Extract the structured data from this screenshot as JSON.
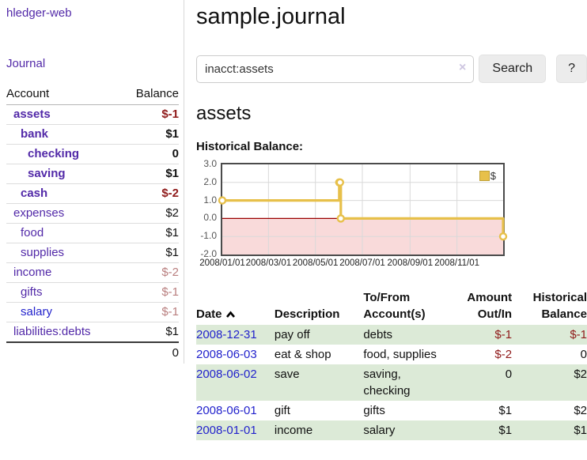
{
  "app": {
    "title": "hledger-web",
    "nav_journal": "Journal"
  },
  "colors": {
    "accent_purple": "#5229a8",
    "link_blue": "#2222cc",
    "negative_red": "#8f1a1a",
    "muted_negative_red": "#b97f7f",
    "row_shade_green": "#dcead7",
    "chart_line_gold": "#e7c04a",
    "chart_negative_fill": "#f9dada",
    "chart_zero_line": "#990000"
  },
  "sidebar": {
    "table": {
      "col_account": "Account",
      "col_balance": "Balance"
    },
    "accounts": [
      {
        "name": "assets",
        "balance": "$-1",
        "indent": 0,
        "bold": true,
        "name_color": "purple",
        "balance_color": "red"
      },
      {
        "name": "bank",
        "balance": "$1",
        "indent": 1,
        "bold": true,
        "name_color": "purple",
        "balance_color": "black"
      },
      {
        "name": "checking",
        "balance": "0",
        "indent": 2,
        "bold": true,
        "name_color": "purple",
        "balance_color": "black"
      },
      {
        "name": "saving",
        "balance": "$1",
        "indent": 2,
        "bold": true,
        "name_color": "purple",
        "balance_color": "black"
      },
      {
        "name": "cash",
        "balance": "$-2",
        "indent": 1,
        "bold": true,
        "name_color": "purple",
        "balance_color": "red"
      },
      {
        "name": "expenses",
        "balance": "$2",
        "indent": 0,
        "bold": false,
        "name_color": "purple",
        "balance_color": "black"
      },
      {
        "name": "food",
        "balance": "$1",
        "indent": 1,
        "bold": false,
        "name_color": "purple",
        "balance_color": "black"
      },
      {
        "name": "supplies",
        "balance": "$1",
        "indent": 1,
        "bold": false,
        "name_color": "purple",
        "balance_color": "black"
      },
      {
        "name": "income",
        "balance": "$-2",
        "indent": 0,
        "bold": false,
        "name_color": "purple",
        "balance_color": "faded"
      },
      {
        "name": "gifts",
        "balance": "$-1",
        "indent": 1,
        "bold": false,
        "name_color": "purple",
        "balance_color": "faded"
      },
      {
        "name": "salary",
        "balance": "$-1",
        "indent": 1,
        "bold": false,
        "name_color": "blue",
        "balance_color": "faded"
      },
      {
        "name": "liabilities:debts",
        "balance": "$1",
        "indent": 0,
        "bold": false,
        "name_color": "purple",
        "balance_color": "black"
      }
    ],
    "total": "0"
  },
  "header": {
    "title": "sample.journal"
  },
  "search": {
    "query": "inacct:assets",
    "clear_label": "×",
    "button": "Search",
    "help": "?"
  },
  "account_page": {
    "heading": "assets",
    "chart_title": "Historical Balance:"
  },
  "chart_data": {
    "type": "line",
    "step": true,
    "title": "Historical Balance:",
    "legend_label": "$",
    "legend_position": "top-right",
    "grid": true,
    "x_start": "2008-01-01",
    "x_end": "2008-12-31",
    "ylim": [
      -2,
      3
    ],
    "yticks": [
      {
        "label": "3.0",
        "value": 3
      },
      {
        "label": "2.0",
        "value": 2
      },
      {
        "label": "1.0",
        "value": 1
      },
      {
        "label": "0.0",
        "value": 0
      },
      {
        "label": "-1.0",
        "value": -1
      },
      {
        "label": "-2.0",
        "value": -2
      }
    ],
    "xticks": [
      {
        "label": "2008/01/01",
        "date": "2008-01-01"
      },
      {
        "label": "2008/03/01",
        "date": "2008-03-01"
      },
      {
        "label": "2008/05/01",
        "date": "2008-05-01"
      },
      {
        "label": "2008/07/01",
        "date": "2008-07-01"
      },
      {
        "label": "2008/09/01",
        "date": "2008-09-01"
      },
      {
        "label": "2008/11/01",
        "date": "2008-11-01"
      }
    ],
    "series": [
      {
        "name": "$",
        "points": [
          [
            "2008-01-01",
            1
          ],
          [
            "2008-06-01",
            2
          ],
          [
            "2008-06-02",
            2
          ],
          [
            "2008-06-03",
            0
          ],
          [
            "2008-12-31",
            -1
          ]
        ]
      }
    ],
    "line_color": "#e7c04a",
    "negative_region_fill": "#f9dada",
    "zero_line_color": "#990000"
  },
  "register": {
    "columns": [
      {
        "label": "Date"
      },
      {
        "label": "Description"
      },
      {
        "label": "To/From Account(s)"
      },
      {
        "label": "Amount Out/In"
      },
      {
        "label": "Historical Balance"
      }
    ],
    "rows": [
      {
        "date": "2008-12-31",
        "description": "pay off",
        "accounts": "debts",
        "amount": "$-1",
        "amount_negative": true,
        "balance": "$-1",
        "balance_negative": true,
        "shaded": true
      },
      {
        "date": "2008-06-03",
        "description": "eat & shop",
        "accounts": "food, supplies",
        "amount": "$-2",
        "amount_negative": true,
        "balance": "0",
        "balance_negative": false,
        "shaded": false
      },
      {
        "date": "2008-06-02",
        "description": "save",
        "accounts": "saving, checking",
        "amount": "0",
        "amount_negative": false,
        "balance": "$2",
        "balance_negative": false,
        "shaded": true
      },
      {
        "date": "2008-06-01",
        "description": "gift",
        "accounts": "gifts",
        "amount": "$1",
        "amount_negative": false,
        "balance": "$2",
        "balance_negative": false,
        "shaded": false
      },
      {
        "date": "2008-01-01",
        "description": "income",
        "accounts": "salary",
        "amount": "$1",
        "amount_negative": false,
        "balance": "$1",
        "balance_negative": false,
        "shaded": true
      }
    ]
  }
}
